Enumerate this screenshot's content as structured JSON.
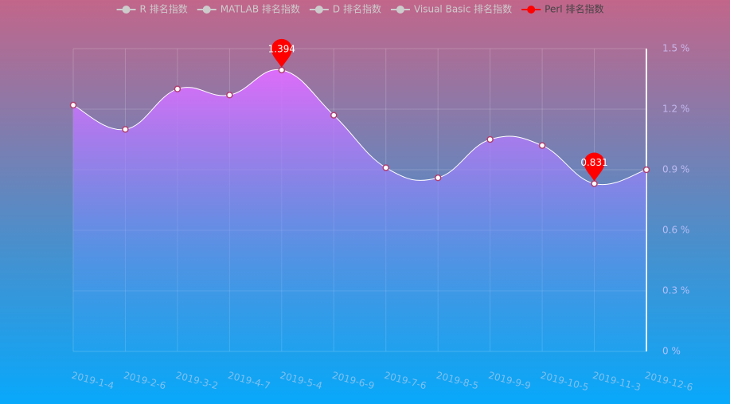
{
  "chart_data": {
    "type": "area",
    "categories": [
      "2019-1-4",
      "2019-2-6",
      "2019-3-2",
      "2019-4-7",
      "2019-5-4",
      "2019-6-9",
      "2019-7-6",
      "2019-8-5",
      "2019-9-9",
      "2019-10-5",
      "2019-11-3",
      "2019-12-6"
    ],
    "series": [
      {
        "name": "R 排名指数",
        "color": "#cccccc",
        "visible": false,
        "values": [
          null,
          null,
          null,
          null,
          null,
          null,
          null,
          null,
          null,
          null,
          null,
          null
        ]
      },
      {
        "name": "MATLAB 排名指数",
        "color": "#cccccc",
        "visible": false,
        "values": [
          null,
          null,
          null,
          null,
          null,
          null,
          null,
          null,
          null,
          null,
          null,
          null
        ]
      },
      {
        "name": "D 排名指数",
        "color": "#cccccc",
        "visible": false,
        "values": [
          null,
          null,
          null,
          null,
          null,
          null,
          null,
          null,
          null,
          null,
          null,
          null
        ]
      },
      {
        "name": "Visual Basic 排名指数",
        "color": "#cccccc",
        "visible": false,
        "values": [
          null,
          null,
          null,
          null,
          null,
          null,
          null,
          null,
          null,
          null,
          null,
          null
        ]
      },
      {
        "name": "Perl 排名指数",
        "color": "#ff0000",
        "visible": true,
        "values": [
          1.22,
          1.1,
          1.3,
          1.27,
          1.394,
          1.17,
          0.91,
          0.86,
          1.05,
          1.02,
          0.831,
          0.9
        ],
        "mark_points": [
          4,
          10
        ]
      }
    ],
    "ylim": [
      0,
      1.5
    ],
    "yticks": [
      {
        "value": 0,
        "label": "0 %"
      },
      {
        "value": 0.3,
        "label": "0.3 %"
      },
      {
        "value": 0.6,
        "label": "0.6 %"
      },
      {
        "value": 0.9,
        "label": "0.9 %"
      },
      {
        "value": 1.2,
        "label": "1.2 %"
      },
      {
        "value": 1.5,
        "label": "1.5 %"
      }
    ],
    "grid": true
  }
}
